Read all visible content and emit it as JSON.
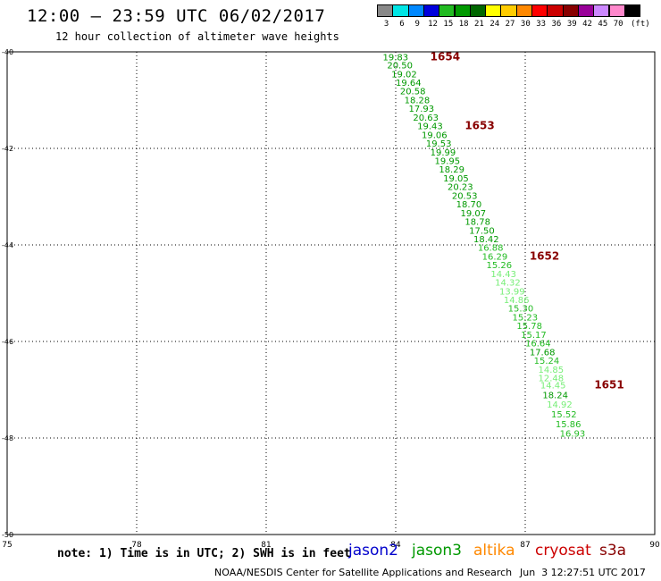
{
  "title": "12:00 – 23:59 UTC 06/02/2017",
  "subtitle": "12 hour collection of altimeter wave heights",
  "legend": {
    "unit": "(ft)",
    "bins": [
      {
        "label": "3",
        "color": "#888888"
      },
      {
        "label": "6",
        "color": "#00e5e5"
      },
      {
        "label": "9",
        "color": "#0088ff"
      },
      {
        "label": "12",
        "color": "#0000dd"
      },
      {
        "label": "15",
        "color": "#22bb22"
      },
      {
        "label": "18",
        "color": "#009900"
      },
      {
        "label": "21",
        "color": "#006600"
      },
      {
        "label": "24",
        "color": "#ffff00"
      },
      {
        "label": "27",
        "color": "#ffcc00"
      },
      {
        "label": "30",
        "color": "#ff8800"
      },
      {
        "label": "33",
        "color": "#ff0000"
      },
      {
        "label": "36",
        "color": "#cc0000"
      },
      {
        "label": "39",
        "color": "#880000"
      },
      {
        "label": "42",
        "color": "#990099"
      },
      {
        "label": "45",
        "color": "#cc88ff"
      },
      {
        "label": "70",
        "color": "#ff88cc"
      },
      {
        "label": "",
        "color": "#000000"
      }
    ]
  },
  "map": {
    "lon_labels": [
      "75",
      "78",
      "81",
      "84",
      "87",
      "90"
    ],
    "lat_labels": [
      "-40",
      "-42",
      "-44",
      "-46",
      "-48",
      "-50"
    ],
    "lon_range": [
      75,
      90
    ],
    "lat_range": [
      -40,
      -50
    ],
    "grid": "dotted"
  },
  "chart_data": {
    "type": "scatter",
    "units": "ft",
    "observations": [
      {
        "label": "19.83",
        "lat": -40.1,
        "lon": 83.7,
        "color": "#009900"
      },
      {
        "label": "20.50",
        "lat": -40.27,
        "lon": 83.8,
        "color": "#009900"
      },
      {
        "label": "19.02",
        "lat": -40.45,
        "lon": 83.9,
        "color": "#009900"
      },
      {
        "label": "19.64",
        "lat": -40.63,
        "lon": 84.0,
        "color": "#009900"
      },
      {
        "label": "20.58",
        "lat": -40.81,
        "lon": 84.1,
        "color": "#009900"
      },
      {
        "label": "18.28",
        "lat": -40.99,
        "lon": 84.2,
        "color": "#009900"
      },
      {
        "label": "17.93",
        "lat": -41.17,
        "lon": 84.3,
        "color": "#009900"
      },
      {
        "label": "20.63",
        "lat": -41.35,
        "lon": 84.4,
        "color": "#009900"
      },
      {
        "label": "19.43",
        "lat": -41.53,
        "lon": 84.5,
        "color": "#009900"
      },
      {
        "label": "19.06",
        "lat": -41.71,
        "lon": 84.6,
        "color": "#009900"
      },
      {
        "label": "19.53",
        "lat": -41.89,
        "lon": 84.7,
        "color": "#009900"
      },
      {
        "label": "19.99",
        "lat": -42.07,
        "lon": 84.8,
        "color": "#009900"
      },
      {
        "label": "19.95",
        "lat": -42.25,
        "lon": 84.9,
        "color": "#009900"
      },
      {
        "label": "18.29",
        "lat": -42.43,
        "lon": 85.0,
        "color": "#009900"
      },
      {
        "label": "19.05",
        "lat": -42.61,
        "lon": 85.1,
        "color": "#009900"
      },
      {
        "label": "20.23",
        "lat": -42.79,
        "lon": 85.2,
        "color": "#009900"
      },
      {
        "label": "20.53",
        "lat": -42.97,
        "lon": 85.3,
        "color": "#009900"
      },
      {
        "label": "18.70",
        "lat": -43.15,
        "lon": 85.4,
        "color": "#009900"
      },
      {
        "label": "19.07",
        "lat": -43.33,
        "lon": 85.5,
        "color": "#009900"
      },
      {
        "label": "18.78",
        "lat": -43.51,
        "lon": 85.6,
        "color": "#009900"
      },
      {
        "label": "17.50",
        "lat": -43.69,
        "lon": 85.7,
        "color": "#009900"
      },
      {
        "label": "18.42",
        "lat": -43.87,
        "lon": 85.8,
        "color": "#009900"
      },
      {
        "label": "16.88",
        "lat": -44.05,
        "lon": 85.9,
        "color": "#22bb22"
      },
      {
        "label": "16.29",
        "lat": -44.23,
        "lon": 86.0,
        "color": "#22bb22"
      },
      {
        "label": "15.26",
        "lat": -44.41,
        "lon": 86.1,
        "color": "#22bb22"
      },
      {
        "label": "14.43",
        "lat": -44.59,
        "lon": 86.2,
        "color": "#77ee77"
      },
      {
        "label": "14.32",
        "lat": -44.77,
        "lon": 86.3,
        "color": "#77ee77"
      },
      {
        "label": "13.99",
        "lat": -44.95,
        "lon": 86.4,
        "color": "#77ee77"
      },
      {
        "label": "14.86",
        "lat": -45.13,
        "lon": 86.5,
        "color": "#77ee77"
      },
      {
        "label": "15.30",
        "lat": -45.31,
        "lon": 86.6,
        "color": "#22bb22"
      },
      {
        "label": "15.23",
        "lat": -45.49,
        "lon": 86.7,
        "color": "#22bb22"
      },
      {
        "label": "15.78",
        "lat": -45.67,
        "lon": 86.8,
        "color": "#22bb22"
      },
      {
        "label": "15.17",
        "lat": -45.85,
        "lon": 86.9,
        "color": "#22bb22"
      },
      {
        "label": "16.64",
        "lat": -46.03,
        "lon": 87.0,
        "color": "#22bb22"
      },
      {
        "label": "17.68",
        "lat": -46.21,
        "lon": 87.1,
        "color": "#009900"
      },
      {
        "label": "15.24",
        "lat": -46.39,
        "lon": 87.2,
        "color": "#22bb22"
      },
      {
        "label": "14.85",
        "lat": -46.57,
        "lon": 87.3,
        "color": "#77ee77"
      },
      {
        "label": "12.48",
        "lat": -46.75,
        "lon": 87.3,
        "color": "#77ee77"
      },
      {
        "label": "14.45",
        "lat": -46.9,
        "lon": 87.35,
        "color": "#77ee77"
      },
      {
        "label": "18.24",
        "lat": -47.1,
        "lon": 87.4,
        "color": "#009900"
      },
      {
        "label": "14.92",
        "lat": -47.3,
        "lon": 87.5,
        "color": "#77ee77"
      },
      {
        "label": "15.52",
        "lat": -47.5,
        "lon": 87.6,
        "color": "#22bb22"
      },
      {
        "label": "15.86",
        "lat": -47.7,
        "lon": 87.7,
        "color": "#22bb22"
      },
      {
        "label": "16.93",
        "lat": -47.9,
        "lon": 87.8,
        "color": "#22bb22"
      }
    ],
    "time_labels": [
      {
        "label": "1654",
        "lat": -40.1,
        "lon": 84.8,
        "color": "#880000"
      },
      {
        "label": "1653",
        "lat": -41.53,
        "lon": 85.6,
        "color": "#880000"
      },
      {
        "label": "1652",
        "lat": -44.23,
        "lon": 87.1,
        "color": "#880000"
      },
      {
        "label": "1651",
        "lat": -46.9,
        "lon": 88.6,
        "color": "#880000"
      }
    ]
  },
  "note": "note: 1) Time is in UTC; 2) SWH is in feet",
  "satellites": [
    {
      "name": "jason2",
      "color": "#0000cc"
    },
    {
      "name": "jason3",
      "color": "#009900"
    },
    {
      "name": "altika",
      "color": "#ff8800"
    },
    {
      "name": "cryosat",
      "color": "#cc0000"
    },
    {
      "name": "s3a",
      "color": "#880000"
    }
  ],
  "footer": {
    "credit": "NOAA/NESDIS Center for Satellite Applications and Research",
    "timestamp": "Jun  3 12:27:51 UTC 2017"
  }
}
